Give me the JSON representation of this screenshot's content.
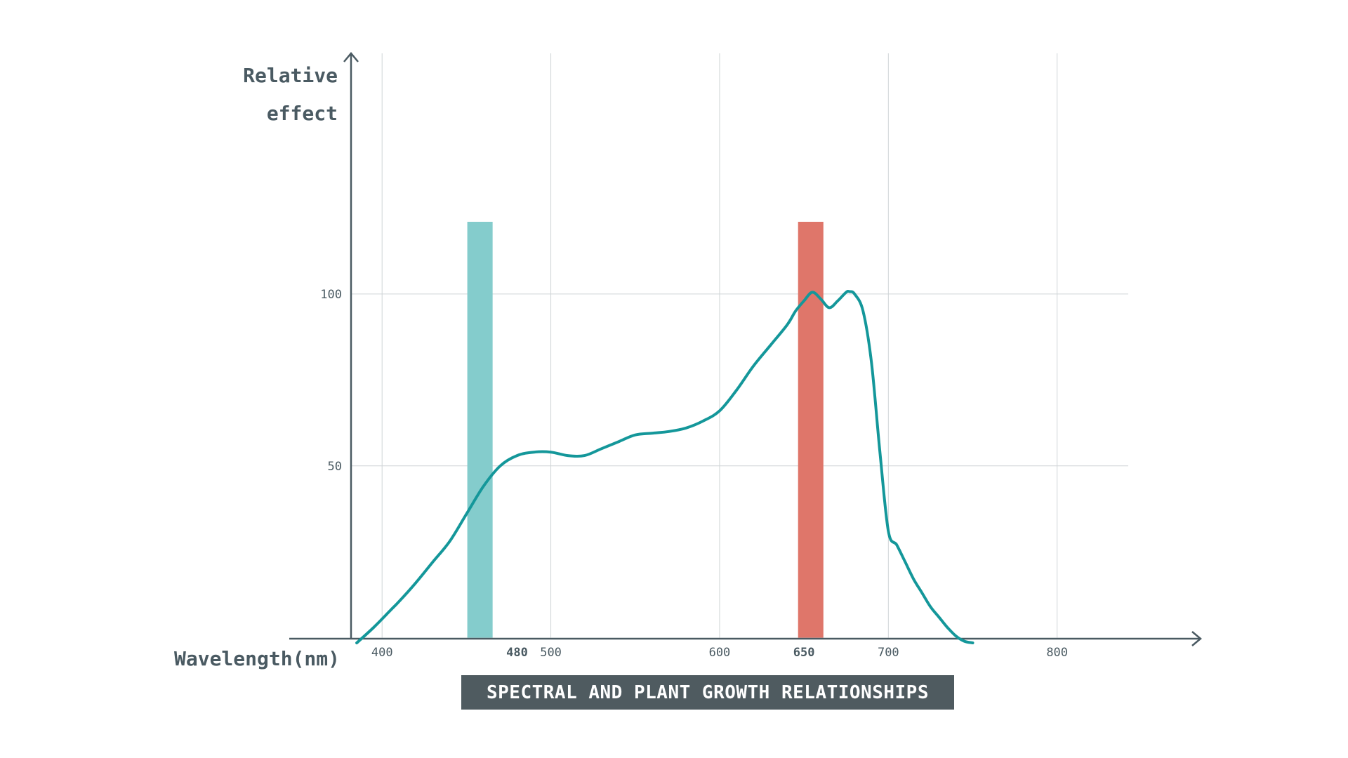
{
  "chart_data": {
    "type": "line",
    "title": "SPECTRAL AND PLANT GROWTH RELATIONSHIPS",
    "xlabel": "Wavelength(nm)",
    "ylabel_lines": [
      "Relative",
      "effect"
    ],
    "x_ticks": [
      {
        "value": 400,
        "label": "400",
        "emphasis": false
      },
      {
        "value": 480,
        "label": "480",
        "emphasis": true
      },
      {
        "value": 500,
        "label": "500",
        "emphasis": false
      },
      {
        "value": 600,
        "label": "600",
        "emphasis": false
      },
      {
        "value": 650,
        "label": "650",
        "emphasis": true
      },
      {
        "value": 700,
        "label": "700",
        "emphasis": false
      },
      {
        "value": 800,
        "label": "800",
        "emphasis": false
      }
    ],
    "x_grid": [
      400,
      500,
      600,
      700,
      800
    ],
    "y_ticks": [
      {
        "value": 50,
        "label": "50"
      },
      {
        "value": 100,
        "label": "100"
      }
    ],
    "xlim": [
      345,
      885
    ],
    "ylim": [
      -1.5,
      170
    ],
    "grid": true,
    "highlight_bands": [
      {
        "name": "blue-band",
        "x_center": 458,
        "width": 15,
        "height": 121,
        "color": "#84cccc"
      },
      {
        "name": "red-band",
        "x_center": 654,
        "width": 15,
        "height": 121,
        "color": "#df766a"
      }
    ],
    "series": [
      {
        "name": "relative-effect-curve",
        "color": "#14979a",
        "x": [
          385,
          395,
          405,
          410,
          420,
          430,
          440,
          450,
          460,
          470,
          480,
          490,
          500,
          510,
          520,
          530,
          540,
          550,
          560,
          570,
          580,
          590,
          600,
          610,
          620,
          630,
          640,
          645,
          650,
          655,
          660,
          665,
          670,
          675,
          677,
          680,
          685,
          690,
          695,
          700,
          705,
          710,
          715,
          720,
          725,
          730,
          735,
          740,
          745,
          750
        ],
        "y": [
          -1.5,
          3,
          8,
          10.5,
          16,
          22,
          28,
          36,
          44,
          50,
          53,
          54,
          54,
          53,
          53,
          55,
          57,
          59,
          59.5,
          60,
          61,
          63,
          66,
          72,
          79,
          85,
          91,
          95,
          98,
          100.5,
          98.5,
          96,
          98,
          100.5,
          100.7,
          100,
          95,
          80,
          54,
          31,
          27,
          22,
          17,
          13,
          9,
          6,
          3,
          0.5,
          -1,
          -1.5
        ]
      }
    ]
  }
}
